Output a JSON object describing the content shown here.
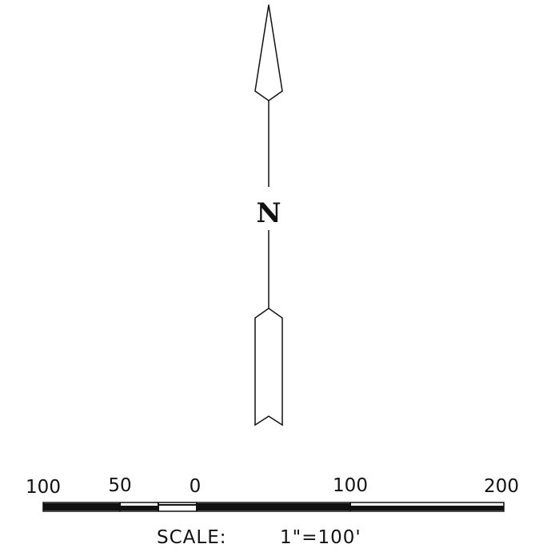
{
  "north_arrow": {
    "label": "N"
  },
  "scale_bar": {
    "ticks": [
      {
        "value": "100"
      },
      {
        "value": "50"
      },
      {
        "value": "0"
      },
      {
        "value": "100"
      },
      {
        "value": "200"
      }
    ],
    "caption_prefix": "SCALE:",
    "caption_ratio": "1\"=100'"
  }
}
